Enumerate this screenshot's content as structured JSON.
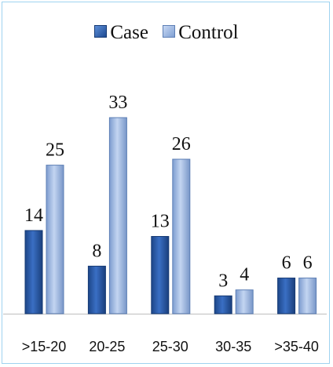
{
  "chart_data": {
    "type": "bar",
    "title": "",
    "xlabel": "",
    "ylabel": "",
    "categories": [
      ">15-20",
      "20-25",
      "25-30",
      "30-35",
      ">35-40"
    ],
    "series": [
      {
        "name": "Case",
        "values": [
          14,
          8,
          13,
          3,
          6
        ],
        "color": "#2d5fae"
      },
      {
        "name": "Control",
        "values": [
          25,
          33,
          26,
          4,
          6
        ],
        "color": "#9db6e0"
      }
    ],
    "ylim": [
      0,
      35
    ],
    "grid": false,
    "legend": "top-center",
    "data_labels": true
  }
}
